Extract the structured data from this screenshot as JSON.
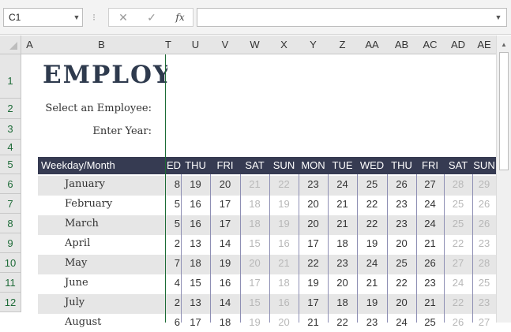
{
  "namebox": {
    "value": "C1",
    "dropdown_icon": "chevron-down-icon"
  },
  "formula_bar": {
    "cancel_icon": "✕",
    "enter_icon": "✓",
    "fx_label": "fx",
    "value": ""
  },
  "columns": [
    "A",
    "B",
    "T",
    "U",
    "V",
    "W",
    "X",
    "Y",
    "Z",
    "AA",
    "AB",
    "AC",
    "AD",
    "AE"
  ],
  "rows": [
    "1",
    "2",
    "3",
    "4",
    "5",
    "6",
    "7",
    "8",
    "9",
    "10",
    "11",
    "12"
  ],
  "sheet": {
    "title": "EMPLOY",
    "select_label": "Select an Employee:",
    "year_label": "Enter Year:",
    "table_header": "Weekday/Month",
    "weekdays": [
      "ED",
      "THU",
      "FRI",
      "SAT",
      "SUN",
      "MON",
      "TUE",
      "WED",
      "THU",
      "FRI",
      "SAT",
      "SUN"
    ],
    "months": [
      {
        "name": "January",
        "days": [
          "8",
          "19",
          "20",
          "21",
          "22",
          "23",
          "24",
          "25",
          "26",
          "27",
          "28",
          "29"
        ]
      },
      {
        "name": "February",
        "days": [
          "5",
          "16",
          "17",
          "18",
          "19",
          "20",
          "21",
          "22",
          "23",
          "24",
          "25",
          "26"
        ]
      },
      {
        "name": "March",
        "days": [
          "5",
          "16",
          "17",
          "18",
          "19",
          "20",
          "21",
          "22",
          "23",
          "24",
          "25",
          "26"
        ]
      },
      {
        "name": "April",
        "days": [
          "2",
          "13",
          "14",
          "15",
          "16",
          "17",
          "18",
          "19",
          "20",
          "21",
          "22",
          "23"
        ]
      },
      {
        "name": "May",
        "days": [
          "7",
          "18",
          "19",
          "20",
          "21",
          "22",
          "23",
          "24",
          "25",
          "26",
          "27",
          "28"
        ]
      },
      {
        "name": "June",
        "days": [
          "4",
          "15",
          "16",
          "17",
          "18",
          "19",
          "20",
          "21",
          "22",
          "23",
          "24",
          "25"
        ]
      },
      {
        "name": "July",
        "days": [
          "2",
          "13",
          "14",
          "15",
          "16",
          "17",
          "18",
          "19",
          "20",
          "21",
          "22",
          "23"
        ]
      },
      {
        "name": "August",
        "days": [
          "6",
          "17",
          "18",
          "19",
          "20",
          "21",
          "22",
          "23",
          "24",
          "25",
          "26",
          "27"
        ]
      }
    ],
    "weekend_days": [
      "SAT",
      "SUN"
    ],
    "colors": {
      "header_bg": "#363b52",
      "band": "#e6e6e6",
      "weekend_text": "#b8b8b8",
      "freeze_line": "#1c6b35"
    }
  }
}
